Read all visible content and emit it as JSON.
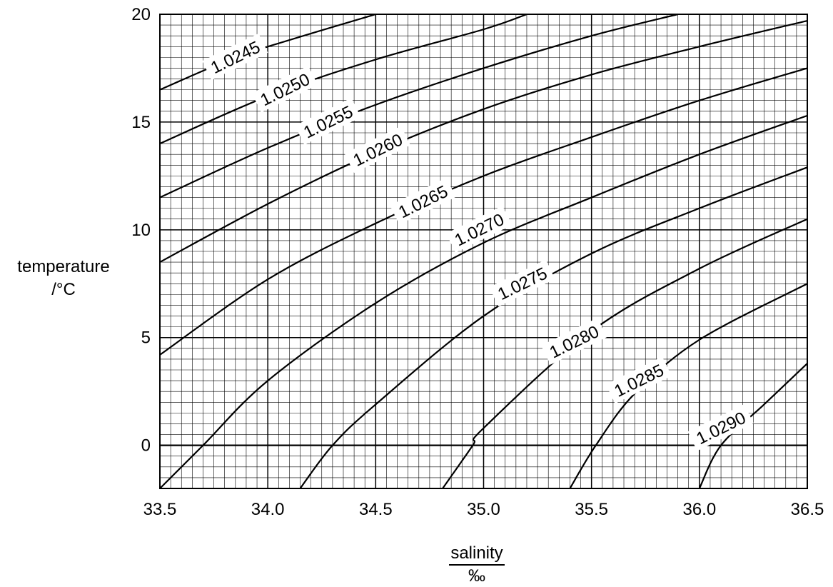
{
  "chart_data": {
    "type": "line",
    "title": "",
    "xlabel": "salinity",
    "xunit": "‰",
    "ylabel": "temperature",
    "yunit": "/°C",
    "xlim": [
      33.5,
      36.5
    ],
    "ylim": [
      -2,
      20
    ],
    "x_ticks": [
      "33.5",
      "34.0",
      "34.5",
      "35.0",
      "35.5",
      "36.0",
      "36.5"
    ],
    "y_ticks": [
      "0",
      "5",
      "10",
      "15",
      "20"
    ],
    "grid": true,
    "series": [
      {
        "name": "1.0245",
        "points": [
          [
            33.5,
            16.5
          ],
          [
            33.8,
            17.8
          ],
          [
            34.0,
            18.5
          ],
          [
            34.5,
            20.0
          ]
        ]
      },
      {
        "name": "1.0250",
        "points": [
          [
            33.5,
            14.0
          ],
          [
            34.0,
            16.2
          ],
          [
            34.5,
            17.9
          ],
          [
            35.0,
            19.3
          ],
          [
            35.2,
            20.0
          ]
        ]
      },
      {
        "name": "1.0255",
        "points": [
          [
            33.5,
            11.5
          ],
          [
            34.0,
            13.8
          ],
          [
            34.5,
            15.8
          ],
          [
            35.0,
            17.5
          ],
          [
            35.5,
            19.0
          ],
          [
            35.9,
            20.0
          ]
        ]
      },
      {
        "name": "1.0260",
        "points": [
          [
            33.5,
            8.5
          ],
          [
            34.0,
            11.2
          ],
          [
            34.5,
            13.6
          ],
          [
            35.0,
            15.6
          ],
          [
            35.5,
            17.2
          ],
          [
            36.0,
            18.5
          ],
          [
            36.5,
            19.7
          ]
        ]
      },
      {
        "name": "1.0265",
        "points": [
          [
            33.5,
            4.2
          ],
          [
            34.0,
            7.7
          ],
          [
            34.5,
            10.3
          ],
          [
            35.0,
            12.5
          ],
          [
            35.5,
            14.3
          ],
          [
            36.0,
            16.0
          ],
          [
            36.5,
            17.5
          ]
        ]
      },
      {
        "name": "1.0270",
        "points": [
          [
            33.5,
            -2.0
          ],
          [
            33.7,
            0.0
          ],
          [
            34.0,
            3.0
          ],
          [
            34.5,
            6.6
          ],
          [
            35.0,
            9.4
          ],
          [
            35.5,
            11.5
          ],
          [
            36.0,
            13.5
          ],
          [
            36.5,
            15.3
          ]
        ]
      },
      {
        "name": "1.0275",
        "points": [
          [
            34.15,
            -2.0
          ],
          [
            34.3,
            0.0
          ],
          [
            34.5,
            1.9
          ],
          [
            35.0,
            6.0
          ],
          [
            35.5,
            8.9
          ],
          [
            36.0,
            11.0
          ],
          [
            36.5,
            12.9
          ]
        ]
      },
      {
        "name": "1.0280",
        "points": [
          [
            34.81,
            -2.0
          ],
          [
            34.95,
            0.0
          ],
          [
            35.0,
            0.8
          ],
          [
            35.5,
            5.3
          ],
          [
            36.0,
            8.2
          ],
          [
            36.5,
            10.5
          ]
        ]
      },
      {
        "name": "1.0285",
        "points": [
          [
            35.4,
            -2.0
          ],
          [
            35.52,
            0.0
          ],
          [
            35.7,
            2.4
          ],
          [
            36.0,
            4.9
          ],
          [
            36.5,
            7.5
          ]
        ]
      },
      {
        "name": "1.0290",
        "points": [
          [
            36.0,
            -2.0
          ],
          [
            36.1,
            0.0
          ],
          [
            36.3,
            1.9
          ],
          [
            36.5,
            3.8
          ]
        ]
      }
    ],
    "curve_labels": [
      {
        "text": "1.0245",
        "x": 33.85,
        "y": 18.0
      },
      {
        "text": "1.0250",
        "x": 34.08,
        "y": 16.5
      },
      {
        "text": "1.0255",
        "x": 34.28,
        "y": 15.0
      },
      {
        "text": "1.0260",
        "x": 34.51,
        "y": 13.7
      },
      {
        "text": "1.0265",
        "x": 34.72,
        "y": 11.3
      },
      {
        "text": "1.0270",
        "x": 34.98,
        "y": 10.0
      },
      {
        "text": "1.0275",
        "x": 35.18,
        "y": 7.5
      },
      {
        "text": "1.0280",
        "x": 35.42,
        "y": 4.8
      },
      {
        "text": "1.0285",
        "x": 35.72,
        "y": 3.0
      },
      {
        "text": "1.0290",
        "x": 36.1,
        "y": 0.8
      }
    ]
  }
}
